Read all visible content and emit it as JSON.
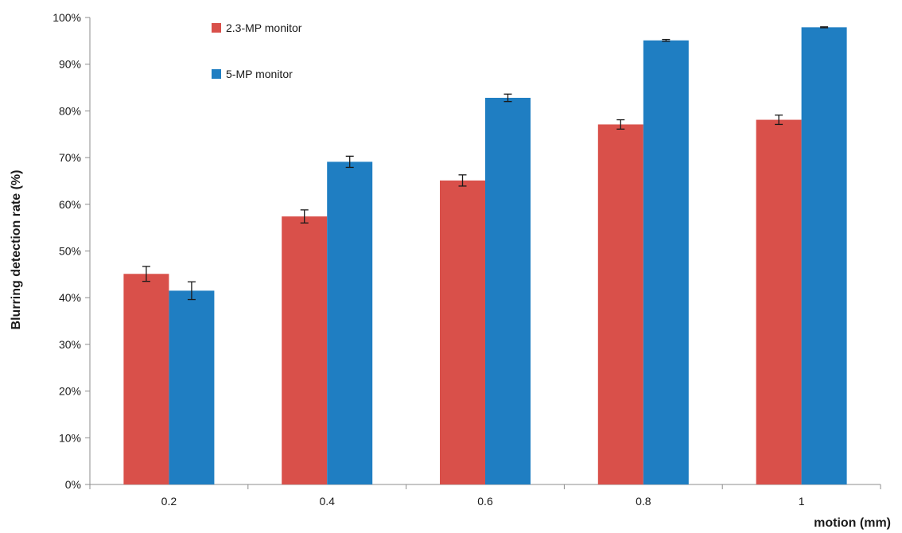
{
  "chart_data": {
    "type": "bar",
    "title": "",
    "xlabel": "motion (mm)",
    "ylabel": "Blurring detection rate (%)",
    "categories": [
      "0.2",
      "0.4",
      "0.6",
      "0.8",
      "1"
    ],
    "ylim": [
      0,
      100
    ],
    "yticks": [
      0,
      10,
      20,
      30,
      40,
      50,
      60,
      70,
      80,
      90,
      100
    ],
    "ytick_labels": [
      "0%",
      "10%",
      "20%",
      "30%",
      "40%",
      "50%",
      "60%",
      "70%",
      "80%",
      "90%",
      "100%"
    ],
    "grid": false,
    "legend_position": "top-left",
    "series": [
      {
        "name": "2.3-MP monitor",
        "color": "#d9504a",
        "values": [
          45.1,
          57.4,
          65.1,
          77.1,
          78.1
        ],
        "errors": [
          1.6,
          1.4,
          1.2,
          1.0,
          1.0
        ]
      },
      {
        "name": "5-MP monitor",
        "color": "#1f7ec2",
        "values": [
          41.5,
          69.1,
          82.8,
          95.1,
          97.9
        ],
        "errors": [
          1.9,
          1.2,
          0.8,
          0.2,
          0.1
        ]
      }
    ]
  }
}
